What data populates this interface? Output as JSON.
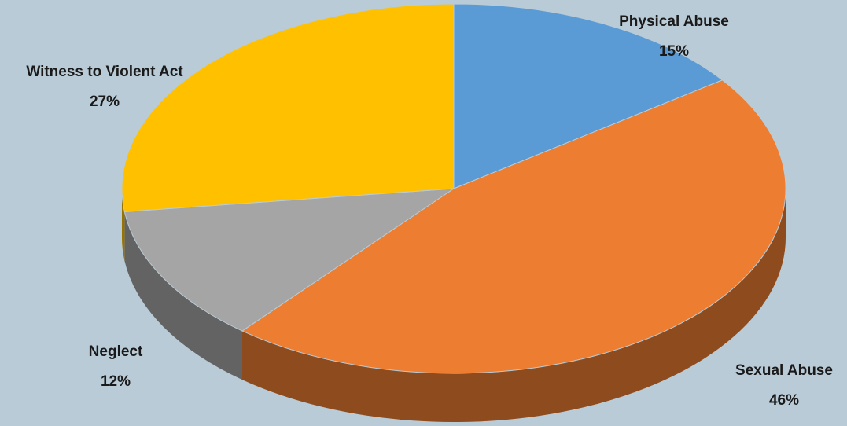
{
  "chart_data": {
    "type": "pie",
    "categories": [
      "Physical Abuse",
      "Sexual Abuse",
      "Neglect",
      "Witness to Violent Act"
    ],
    "values": [
      15,
      46,
      12,
      27
    ],
    "value_labels": [
      "15%",
      "46%",
      "12%",
      "27%"
    ],
    "colors": [
      "#5b9bd5",
      "#ed7d31",
      "#a5a5a5",
      "#ffc000"
    ]
  }
}
